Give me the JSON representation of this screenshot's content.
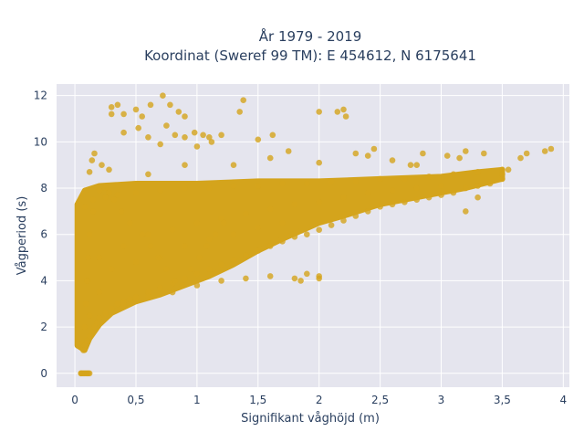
{
  "chart_data": {
    "type": "scatter",
    "title_lines": [
      "År 1979 - 2019",
      "Koordinat (Sweref 99 TM): E 454612, N 6175641"
    ],
    "xlabel": "Signifikant våghöjd (m)",
    "ylabel": "Vågperiod (s)",
    "xlim": [
      -0.15,
      4.05
    ],
    "ylim": [
      -0.6,
      12.5
    ],
    "x_ticks": [
      0,
      0.5,
      1,
      1.5,
      2,
      2.5,
      3,
      3.5,
      4
    ],
    "x_tick_labels": [
      "0",
      "0,5",
      "1",
      "1,5",
      "2",
      "2,5",
      "3",
      "3,5",
      "4"
    ],
    "y_ticks": [
      0,
      2,
      4,
      6,
      8,
      10,
      12
    ],
    "y_tick_labels": [
      "0",
      "2",
      "4",
      "6",
      "8",
      "10",
      "12"
    ],
    "grid": true,
    "colors": {
      "marker": "#d4a41c",
      "plot_background": "#e5e5ee",
      "grid": "#ffffff",
      "text": "#2a3f5f"
    },
    "series": [
      {
        "x": [
          0.05,
          0.05,
          0.06,
          0.07,
          0.08,
          0.09,
          0.1,
          0.11,
          0.12,
          0.06,
          0.08,
          0.1,
          0.12,
          0.14,
          0.16,
          0.18,
          0.2,
          0.25,
          0.3,
          0.35,
          0.4,
          0.45,
          0.5,
          0.6,
          0.7,
          0.8,
          0.9,
          1.0,
          1.1,
          1.2,
          1.3,
          1.4,
          1.5,
          1.6,
          1.7,
          1.8,
          1.9,
          2.0,
          2.1,
          2.2,
          2.3,
          2.4,
          2.5,
          2.6,
          2.7,
          2.8,
          2.9,
          3.0,
          3.1,
          3.2,
          3.3,
          3.4,
          3.5,
          0.08,
          0.15,
          0.25,
          0.35,
          0.5,
          0.7,
          0.9,
          1.1,
          1.3,
          1.5,
          1.7,
          1.9,
          2.1,
          2.3,
          2.5,
          2.7,
          2.9,
          3.1,
          3.3,
          3.5,
          0.1,
          0.2,
          0.4,
          0.6,
          0.8,
          1.0,
          1.2,
          1.4,
          1.6,
          1.8,
          2.0,
          2.2,
          2.4,
          2.6,
          2.8,
          3.0,
          0.12,
          0.3,
          0.5,
          0.7,
          0.9,
          1.1,
          1.3,
          1.5,
          1.7,
          0.2,
          0.4,
          0.6,
          0.8,
          1.0,
          1.2,
          1.4,
          1.6,
          1.8,
          2.0,
          1.85,
          1.9,
          2.0,
          0.07,
          0.08,
          0.09,
          0.1,
          0.11,
          0.12,
          0.15,
          0.2,
          0.25,
          0.28,
          0.32,
          0.38,
          0.45,
          0.55,
          0.62,
          0.68,
          0.75,
          0.82,
          0.88,
          0.95,
          1.02,
          1.08,
          1.15,
          1.22,
          0.3,
          0.35,
          0.3,
          0.4,
          0.5,
          0.55,
          0.62,
          0.72,
          0.78,
          0.85,
          0.9,
          0.98,
          1.05,
          1.12,
          1.35,
          1.38,
          2.0,
          2.15,
          2.2,
          2.22,
          0.4,
          0.52,
          0.6,
          0.7,
          0.75,
          0.82,
          0.9,
          1.0,
          1.1,
          1.2,
          1.5,
          1.62,
          1.75,
          2.3,
          2.45,
          2.6,
          2.75,
          2.85,
          3.2,
          3.35,
          3.5,
          3.55,
          3.65,
          3.7,
          3.85,
          3.9,
          3.3,
          3.2,
          0.12,
          0.14,
          0.16,
          0.22,
          0.28,
          0.6,
          0.9,
          1.3,
          1.6,
          2.0,
          2.4,
          2.8,
          3.05,
          3.15
        ],
        "y": [
          0,
          0,
          0,
          0,
          0,
          0,
          0,
          0,
          0,
          1.3,
          1.2,
          1.4,
          1.6,
          1.8,
          2.0,
          2.2,
          2.4,
          2.6,
          2.8,
          3.0,
          3.1,
          3.2,
          3.3,
          3.5,
          3.7,
          3.9,
          4.1,
          4.3,
          4.5,
          4.7,
          4.9,
          5.1,
          5.3,
          5.5,
          5.7,
          5.9,
          6.0,
          6.2,
          6.4,
          6.6,
          6.8,
          7.0,
          7.2,
          7.3,
          7.4,
          7.5,
          7.6,
          7.7,
          7.8,
          8.0,
          8.1,
          8.2,
          8.4,
          7.2,
          7.5,
          7.6,
          7.7,
          7.8,
          7.9,
          8.0,
          8.0,
          8.1,
          8.1,
          8.2,
          8.2,
          8.3,
          8.3,
          8.4,
          8.4,
          8.5,
          8.6,
          8.7,
          8.8,
          4.0,
          5.0,
          5.5,
          6.0,
          6.2,
          6.5,
          6.7,
          6.9,
          7.1,
          7.3,
          7.4,
          7.6,
          7.8,
          7.9,
          8.0,
          8.1,
          2.5,
          4.5,
          4.8,
          5.0,
          5.5,
          5.8,
          6.0,
          6.3,
          6.5,
          3.5,
          3.0,
          3.3,
          3.5,
          3.8,
          4.0,
          4.1,
          4.2,
          4.1,
          4.2,
          4.0,
          4.3,
          4.1,
          1.0,
          2.0,
          3.0,
          4.0,
          5.0,
          6.0,
          7.0,
          7.9,
          8.0,
          7.8,
          7.5,
          7.0,
          6.5,
          6.0,
          5.5,
          5.0,
          4.5,
          4.0,
          3.8,
          4.5,
          5.0,
          5.5,
          6.0,
          6.5,
          11.2,
          11.6,
          11.5,
          11.2,
          11.4,
          11.1,
          11.6,
          12.0,
          11.6,
          11.3,
          11.1,
          10.4,
          10.3,
          10.0,
          11.3,
          11.8,
          11.3,
          11.3,
          11.4,
          11.1,
          10.4,
          10.6,
          10.2,
          9.9,
          10.7,
          10.3,
          10.2,
          9.8,
          10.2,
          10.3,
          10.1,
          10.3,
          9.6,
          9.5,
          9.7,
          9.2,
          9.0,
          9.5,
          9.6,
          9.5,
          8.6,
          8.8,
          9.3,
          9.5,
          9.6,
          9.7,
          7.6,
          7.0,
          8.7,
          9.2,
          9.5,
          9.0,
          8.8,
          8.6,
          9.0,
          9.0,
          9.3,
          9.1,
          9.4,
          9.0,
          9.4,
          9.3
        ]
      }
    ]
  }
}
